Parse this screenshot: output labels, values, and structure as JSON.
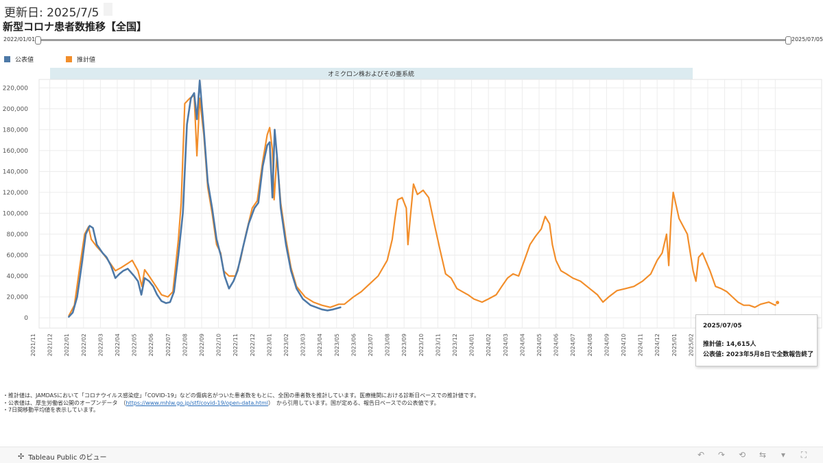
{
  "header": {
    "updated": "更新日: 2025/7/5",
    "title": "新型コロナ患者数推移【全国】"
  },
  "slider": {
    "start_label": "2022/01/01",
    "end_label": "2025/07/05"
  },
  "legend": [
    {
      "label": "公表値",
      "color": "#4e79a7"
    },
    {
      "label": "推計値",
      "color": "#f28e2b"
    }
  ],
  "chart_data": {
    "type": "line",
    "band_label": "オミクロン株およびその亜系統",
    "yticks": [
      0,
      20000,
      40000,
      60000,
      80000,
      100000,
      120000,
      140000,
      160000,
      180000,
      200000,
      220000
    ],
    "ylim": [
      0,
      230000
    ],
    "grid": true,
    "legend_position": "top-left",
    "x_tick_labels": [
      "2021/11",
      "2021/12",
      "2022/01",
      "2022/02",
      "2022/03",
      "2022/04",
      "2022/05",
      "2022/06",
      "2022/07",
      "2022/08",
      "2022/09",
      "2022/10",
      "2022/11",
      "2022/12",
      "2023/01",
      "2023/02",
      "2023/03",
      "2023/04",
      "2023/05",
      "2023/06",
      "2023/07",
      "2023/08",
      "2023/09",
      "2023/10",
      "2023/11",
      "2023/12",
      "2024/01",
      "2024/02",
      "2024/03",
      "2024/04",
      "2024/05",
      "2024/06",
      "2024/07",
      "2024/08",
      "2024/09",
      "2024/10",
      "2024/11",
      "2024/12",
      "2025/01",
      "2025/02",
      "2025/03",
      "2025/04",
      "2025/05",
      "2025/06",
      "2025/07"
    ],
    "series": [
      {
        "name": "推計値",
        "color": "#f28e2b",
        "points": [
          [
            "2022/01/05",
            2000
          ],
          [
            "2022/01/15",
            12000
          ],
          [
            "2022/01/25",
            50000
          ],
          [
            "2022/02/03",
            80000
          ],
          [
            "2022/02/10",
            87000
          ],
          [
            "2022/02/15",
            75000
          ],
          [
            "2022/02/25",
            68000
          ],
          [
            "2022/03/05",
            62000
          ],
          [
            "2022/03/15",
            55000
          ],
          [
            "2022/03/28",
            45000
          ],
          [
            "2022/04/08",
            48000
          ],
          [
            "2022/04/20",
            52000
          ],
          [
            "2022/04/28",
            55000
          ],
          [
            "2022/05/08",
            45000
          ],
          [
            "2022/05/15",
            30000
          ],
          [
            "2022/05/20",
            46000
          ],
          [
            "2022/05/28",
            40000
          ],
          [
            "2022/06/10",
            30000
          ],
          [
            "2022/06/20",
            22000
          ],
          [
            "2022/07/01",
            20000
          ],
          [
            "2022/07/10",
            25000
          ],
          [
            "2022/07/20",
            75000
          ],
          [
            "2022/07/25",
            110000
          ],
          [
            "2022/08/01",
            205000
          ],
          [
            "2022/08/10",
            210000
          ],
          [
            "2022/08/18",
            213000
          ],
          [
            "2022/08/23",
            155000
          ],
          [
            "2022/08/28",
            210000
          ],
          [
            "2022/09/05",
            175000
          ],
          [
            "2022/09/12",
            125000
          ],
          [
            "2022/09/20",
            100000
          ],
          [
            "2022/09/28",
            70000
          ],
          [
            "2022/10/05",
            62000
          ],
          [
            "2022/10/10",
            45000
          ],
          [
            "2022/10/20",
            40000
          ],
          [
            "2022/11/01",
            40000
          ],
          [
            "2022/11/10",
            55000
          ],
          [
            "2022/11/20",
            80000
          ],
          [
            "2022/12/01",
            105000
          ],
          [
            "2022/12/10",
            112000
          ],
          [
            "2022/12/20",
            150000
          ],
          [
            "2022/12/28",
            175000
          ],
          [
            "2023/01/02",
            182000
          ],
          [
            "2023/01/07",
            160000
          ],
          [
            "2023/01/10",
            113000
          ],
          [
            "2023/01/15",
            155000
          ],
          [
            "2023/01/22",
            110000
          ],
          [
            "2023/02/01",
            75000
          ],
          [
            "2023/02/10",
            48000
          ],
          [
            "2023/02/20",
            30000
          ],
          [
            "2023/03/05",
            20000
          ],
          [
            "2023/03/20",
            15000
          ],
          [
            "2023/04/05",
            12000
          ],
          [
            "2023/04/20",
            10000
          ],
          [
            "2023/05/05",
            13000
          ],
          [
            "2023/05/15",
            13000
          ],
          [
            "2023/06/01",
            20000
          ],
          [
            "2023/06/15",
            25000
          ],
          [
            "2023/07/01",
            33000
          ],
          [
            "2023/07/15",
            40000
          ],
          [
            "2023/08/01",
            55000
          ],
          [
            "2023/08/10",
            75000
          ],
          [
            "2023/08/15",
            95000
          ],
          [
            "2023/08/20",
            113000
          ],
          [
            "2023/08/28",
            115000
          ],
          [
            "2023/09/05",
            105000
          ],
          [
            "2023/09/08",
            70000
          ],
          [
            "2023/09/12",
            95000
          ],
          [
            "2023/09/18",
            128000
          ],
          [
            "2023/09/25",
            118000
          ],
          [
            "2023/10/05",
            122000
          ],
          [
            "2023/10/15",
            115000
          ],
          [
            "2023/10/25",
            90000
          ],
          [
            "2023/11/05",
            65000
          ],
          [
            "2023/11/15",
            42000
          ],
          [
            "2023/11/25",
            38000
          ],
          [
            "2023/12/05",
            28000
          ],
          [
            "2023/12/15",
            25000
          ],
          [
            "2023/12/25",
            22000
          ],
          [
            "2024/01/05",
            18000
          ],
          [
            "2024/01/20",
            15000
          ],
          [
            "2024/02/01",
            18000
          ],
          [
            "2024/02/15",
            22000
          ],
          [
            "2024/02/25",
            30000
          ],
          [
            "2024/03/05",
            38000
          ],
          [
            "2024/03/15",
            42000
          ],
          [
            "2024/03/25",
            40000
          ],
          [
            "2024/04/05",
            55000
          ],
          [
            "2024/04/15",
            70000
          ],
          [
            "2024/04/25",
            78000
          ],
          [
            "2024/05/05",
            85000
          ],
          [
            "2024/05/12",
            97000
          ],
          [
            "2024/05/20",
            90000
          ],
          [
            "2024/05/25",
            70000
          ],
          [
            "2024/06/01",
            55000
          ],
          [
            "2024/06/10",
            45000
          ],
          [
            "2024/06/20",
            42000
          ],
          [
            "2024/07/01",
            38000
          ],
          [
            "2024/07/15",
            35000
          ],
          [
            "2024/08/01",
            28000
          ],
          [
            "2024/08/15",
            22000
          ],
          [
            "2024/08/25",
            15000
          ],
          [
            "2024/09/05",
            20000
          ],
          [
            "2024/09/20",
            26000
          ],
          [
            "2024/10/05",
            28000
          ],
          [
            "2024/10/20",
            30000
          ],
          [
            "2024/11/05",
            35000
          ],
          [
            "2024/11/20",
            42000
          ],
          [
            "2024/12/01",
            55000
          ],
          [
            "2024/12/10",
            62000
          ],
          [
            "2024/12/18",
            80000
          ],
          [
            "2024/12/22",
            50000
          ],
          [
            "2024/12/26",
            95000
          ],
          [
            "2024/12/30",
            120000
          ],
          [
            "2025/01/10",
            95000
          ],
          [
            "2025/01/25",
            80000
          ],
          [
            "2025/02/05",
            45000
          ],
          [
            "2025/02/10",
            35000
          ],
          [
            "2025/02/15",
            58000
          ],
          [
            "2025/02/22",
            62000
          ],
          [
            "2025/03/05",
            45000
          ],
          [
            "2025/03/15",
            30000
          ],
          [
            "2025/03/25",
            28000
          ],
          [
            "2025/04/05",
            25000
          ],
          [
            "2025/04/15",
            20000
          ],
          [
            "2025/04/25",
            15000
          ],
          [
            "2025/05/05",
            12000
          ],
          [
            "2025/05/15",
            12000
          ],
          [
            "2025/05/25",
            10000
          ],
          [
            "2025/06/05",
            13000
          ],
          [
            "2025/06/20",
            15000
          ],
          [
            "2025/07/01",
            12000
          ],
          [
            "2025/07/05",
            14615
          ]
        ]
      },
      {
        "name": "公表値",
        "color": "#4e79a7",
        "points": [
          [
            "2022/01/05",
            1000
          ],
          [
            "2022/01/12",
            5000
          ],
          [
            "2022/01/20",
            20000
          ],
          [
            "2022/01/28",
            50000
          ],
          [
            "2022/02/05",
            80000
          ],
          [
            "2022/02/12",
            88000
          ],
          [
            "2022/02/18",
            86000
          ],
          [
            "2022/02/25",
            70000
          ],
          [
            "2022/03/05",
            62000
          ],
          [
            "2022/03/12",
            58000
          ],
          [
            "2022/03/20",
            50000
          ],
          [
            "2022/03/28",
            38000
          ],
          [
            "2022/04/05",
            42000
          ],
          [
            "2022/04/12",
            45000
          ],
          [
            "2022/04/20",
            47000
          ],
          [
            "2022/05/01",
            40000
          ],
          [
            "2022/05/08",
            35000
          ],
          [
            "2022/05/14",
            22000
          ],
          [
            "2022/05/20",
            38000
          ],
          [
            "2022/05/28",
            35000
          ],
          [
            "2022/06/05",
            30000
          ],
          [
            "2022/06/12",
            22000
          ],
          [
            "2022/06/20",
            16000
          ],
          [
            "2022/06/28",
            14000
          ],
          [
            "2022/07/05",
            15000
          ],
          [
            "2022/07/12",
            25000
          ],
          [
            "2022/07/20",
            60000
          ],
          [
            "2022/07/28",
            100000
          ],
          [
            "2022/08/05",
            185000
          ],
          [
            "2022/08/12",
            210000
          ],
          [
            "2022/08/18",
            215000
          ],
          [
            "2022/08/23",
            190000
          ],
          [
            "2022/08/28",
            227000
          ],
          [
            "2022/09/05",
            180000
          ],
          [
            "2022/09/12",
            130000
          ],
          [
            "2022/09/20",
            105000
          ],
          [
            "2022/09/28",
            75000
          ],
          [
            "2022/10/05",
            60000
          ],
          [
            "2022/10/12",
            40000
          ],
          [
            "2022/10/20",
            28000
          ],
          [
            "2022/10/28",
            35000
          ],
          [
            "2022/11/05",
            45000
          ],
          [
            "2022/11/15",
            68000
          ],
          [
            "2022/11/25",
            90000
          ],
          [
            "2022/12/05",
            105000
          ],
          [
            "2022/12/12",
            110000
          ],
          [
            "2022/12/20",
            145000
          ],
          [
            "2022/12/28",
            165000
          ],
          [
            "2023/01/02",
            168000
          ],
          [
            "2023/01/07",
            115000
          ],
          [
            "2023/01/11",
            180000
          ],
          [
            "2023/01/16",
            150000
          ],
          [
            "2023/01/22",
            105000
          ],
          [
            "2023/02/01",
            70000
          ],
          [
            "2023/02/10",
            45000
          ],
          [
            "2023/02/20",
            28000
          ],
          [
            "2023/03/01",
            18000
          ],
          [
            "2023/03/15",
            12000
          ],
          [
            "2023/03/25",
            10000
          ],
          [
            "2023/04/05",
            8000
          ],
          [
            "2023/04/15",
            7000
          ],
          [
            "2023/04/25",
            8000
          ],
          [
            "2023/05/08",
            10000
          ]
        ]
      }
    ]
  },
  "tooltip": {
    "date": "2025/07/05",
    "line1": "推計値: 14,615人",
    "line2": "公表値: 2023年5月8日で全数報告終了"
  },
  "notes": {
    "line1": "・推計値は、JAMDASにおいて「コロナウイルス感染症」「COVID-19」などの傷病名がついた患者数をもとに、全国の患者数を推計しています。医療機関における診断日ベースでの推計値です。",
    "line2_pre": "・公表値は、厚生労働省公開のオープンデータ　（",
    "line2_link": "https://www.mhlw.go.jp/stf/covid-19/open-data.html",
    "line2_post": "）　から引用しています。国が定める、報告日ベースでの公表値です。",
    "line3": "・7日間移動平均値を表示しています。"
  },
  "footer": {
    "brand": "Tableau Public のビュー"
  }
}
